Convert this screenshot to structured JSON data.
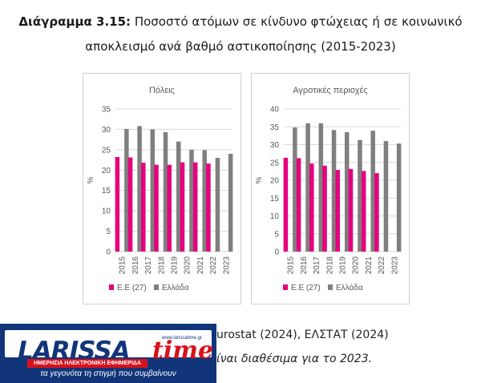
{
  "title": {
    "label": "Διάγραμμα 3.15:",
    "line1": "Ποσοστό ατόμων σε κίνδυνο φτώχειας ή σε κοινωνικό",
    "line2": "αποκλεισμό ανά βαθμό αστικοποίησης (2015-2023)"
  },
  "source_text": "urostat (2024), ΕΛΣΤΑΤ (2024)",
  "note_text": "ίναι διαθέσιμα για το 2023.",
  "logo": {
    "name_main": "LARISSA",
    "name_accent": "time",
    "url": "www.larissatime.gr",
    "subtitle": "ΗΜΕΡΗΣΙΑ ΗΛΕΚΤΡΟΝΙΚΗ ΕΦΗΜΕΡΙΔΑ",
    "tagline": "τα γεγονότα τη στιγμή που συμβαίνουν"
  },
  "colors": {
    "eu": "#e6007e",
    "greece": "#7f7f7f",
    "grid": "#d9d9d9",
    "text": "#595959"
  },
  "chart_data": [
    {
      "type": "bar",
      "title": "Πόλεις",
      "ylabel": "%",
      "ylim": [
        0,
        35
      ],
      "yticks": [
        0,
        5,
        10,
        15,
        20,
        25,
        30,
        35
      ],
      "categories": [
        "2015",
        "2016",
        "2017",
        "2018",
        "2019",
        "2020",
        "2021",
        "2022",
        "2023"
      ],
      "series": [
        {
          "name": "Ε.Ε (27)",
          "color": "#e6007e",
          "values": [
            23.2,
            23.1,
            21.8,
            21.3,
            21.3,
            21.9,
            21.9,
            21.6,
            null
          ]
        },
        {
          "name": "Ελλάδα",
          "color": "#7f7f7f",
          "values": [
            30.1,
            30.8,
            30.0,
            29.3,
            27.0,
            25.0,
            24.9,
            23.0,
            24.0
          ]
        }
      ],
      "legend": "bottom"
    },
    {
      "type": "bar",
      "title": "Αγροτικές περιοχές",
      "ylabel": "%",
      "ylim": [
        0,
        40
      ],
      "yticks": [
        0,
        5,
        10,
        15,
        20,
        25,
        30,
        35,
        40
      ],
      "categories": [
        "2015",
        "2016",
        "2017",
        "2018",
        "2019",
        "2020",
        "2021",
        "2022",
        "2023"
      ],
      "series": [
        {
          "name": "Ε.Ε (27)",
          "color": "#e6007e",
          "values": [
            26.3,
            26.2,
            24.7,
            24.1,
            22.9,
            23.2,
            22.6,
            22.0,
            null
          ]
        },
        {
          "name": "Ελλάδα",
          "color": "#7f7f7f",
          "values": [
            34.8,
            36.0,
            36.0,
            34.1,
            33.5,
            31.3,
            33.9,
            31.0,
            30.3
          ]
        }
      ],
      "legend": "bottom"
    }
  ]
}
